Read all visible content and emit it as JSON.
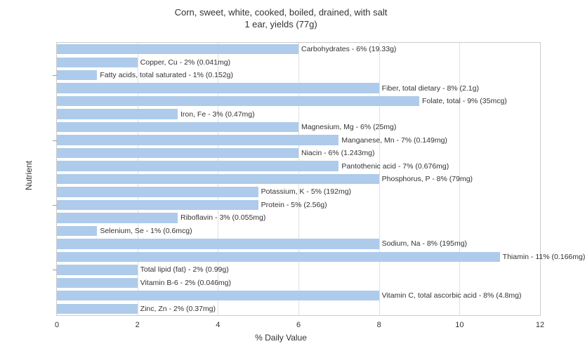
{
  "chart": {
    "type": "bar",
    "title_line1": "Corn, sweet, white, cooked, boiled, drained, with salt",
    "title_line2": "1 ear, yields (77g)",
    "title_fontsize": 13,
    "xlabel": "% Daily Value",
    "ylabel": "Nutrient",
    "label_fontsize": 12,
    "xlim_min": 0,
    "xlim_max": 12,
    "xtick_step": 2,
    "xticks": [
      0,
      2,
      4,
      6,
      8,
      10,
      12
    ],
    "bar_color": "#aecbeb",
    "background_color": "#ffffff",
    "grid_color": "#e0e0e0",
    "border_color": "#cccccc",
    "bar_label_fontsize": 10.5,
    "tick_fontsize": 11,
    "y_group_ticks": [
      2.5,
      7.5,
      12.5,
      17.5
    ],
    "nutrients": [
      {
        "name": "Carbohydrates",
        "pct": 6,
        "amount": "19.33g",
        "label": "Carbohydrates - 6% (19.33g)"
      },
      {
        "name": "Copper, Cu",
        "pct": 2,
        "amount": "0.041mg",
        "label": "Copper, Cu - 2% (0.041mg)"
      },
      {
        "name": "Fatty acids, total saturated",
        "pct": 1,
        "amount": "0.152g",
        "label": "Fatty acids, total saturated - 1% (0.152g)"
      },
      {
        "name": "Fiber, total dietary",
        "pct": 8,
        "amount": "2.1g",
        "label": "Fiber, total dietary - 8% (2.1g)"
      },
      {
        "name": "Folate, total",
        "pct": 9,
        "amount": "35mcg",
        "label": "Folate, total - 9% (35mcg)"
      },
      {
        "name": "Iron, Fe",
        "pct": 3,
        "amount": "0.47mg",
        "label": "Iron, Fe - 3% (0.47mg)"
      },
      {
        "name": "Magnesium, Mg",
        "pct": 6,
        "amount": "25mg",
        "label": "Magnesium, Mg - 6% (25mg)"
      },
      {
        "name": "Manganese, Mn",
        "pct": 7,
        "amount": "0.149mg",
        "label": "Manganese, Mn - 7% (0.149mg)"
      },
      {
        "name": "Niacin",
        "pct": 6,
        "amount": "1.243mg",
        "label": "Niacin - 6% (1.243mg)"
      },
      {
        "name": "Pantothenic acid",
        "pct": 7,
        "amount": "0.676mg",
        "label": "Pantothenic acid - 7% (0.676mg)"
      },
      {
        "name": "Phosphorus, P",
        "pct": 8,
        "amount": "79mg",
        "label": "Phosphorus, P - 8% (79mg)"
      },
      {
        "name": "Potassium, K",
        "pct": 5,
        "amount": "192mg",
        "label": "Potassium, K - 5% (192mg)"
      },
      {
        "name": "Protein",
        "pct": 5,
        "amount": "2.56g",
        "label": "Protein - 5% (2.56g)"
      },
      {
        "name": "Riboflavin",
        "pct": 3,
        "amount": "0.055mg",
        "label": "Riboflavin - 3% (0.055mg)"
      },
      {
        "name": "Selenium, Se",
        "pct": 1,
        "amount": "0.6mcg",
        "label": "Selenium, Se - 1% (0.6mcg)"
      },
      {
        "name": "Sodium, Na",
        "pct": 8,
        "amount": "195mg",
        "label": "Sodium, Na - 8% (195mg)"
      },
      {
        "name": "Thiamin",
        "pct": 11,
        "amount": "0.166mg",
        "label": "Thiamin - 11% (0.166mg)"
      },
      {
        "name": "Total lipid (fat)",
        "pct": 2,
        "amount": "0.99g",
        "label": "Total lipid (fat) - 2% (0.99g)"
      },
      {
        "name": "Vitamin B-6",
        "pct": 2,
        "amount": "0.046mg",
        "label": "Vitamin B-6 - 2% (0.046mg)"
      },
      {
        "name": "Vitamin C, total ascorbic acid",
        "pct": 8,
        "amount": "4.8mg",
        "label": "Vitamin C, total ascorbic acid - 8% (4.8mg)"
      },
      {
        "name": "Zinc, Zn",
        "pct": 2,
        "amount": "0.37mg",
        "label": "Zinc, Zn - 2% (0.37mg)"
      }
    ]
  }
}
